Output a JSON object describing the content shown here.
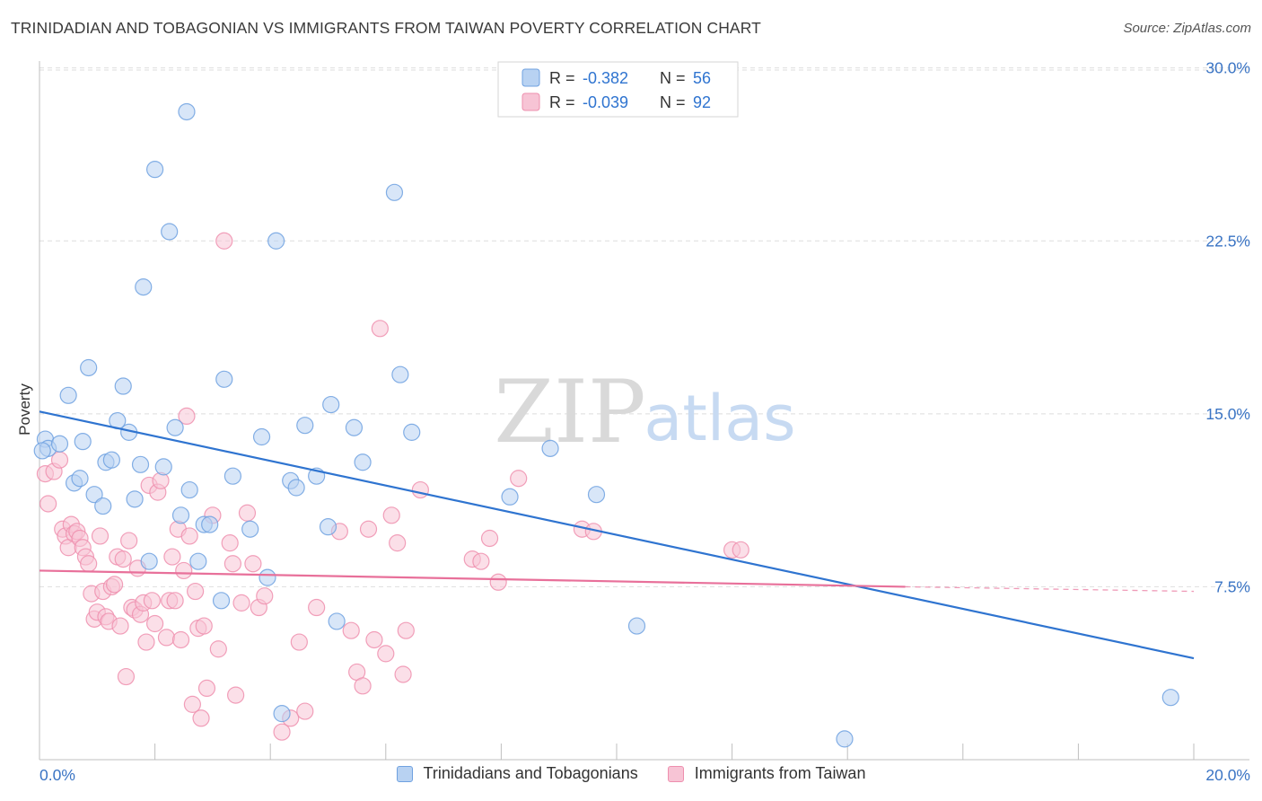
{
  "header": {
    "title": "TRINIDADIAN AND TOBAGONIAN VS IMMIGRANTS FROM TAIWAN POVERTY CORRELATION CHART",
    "source": "Source: ZipAtlas.com"
  },
  "watermark": {
    "zip": "ZIP",
    "atlas": "atlas"
  },
  "colors": {
    "blue": "#6fa1e0",
    "blue_fill": "#b8d2f2",
    "blue_line": "#2f74d0",
    "pink": "#ee8fae",
    "pink_fill": "#f7c4d5",
    "pink_line": "#e8709a",
    "tick": "#3a74c4"
  },
  "stats_legend": [
    {
      "r_label": "R = ",
      "r_value": "-0.382",
      "n_label": "N = ",
      "n_value": "56"
    },
    {
      "r_label": "R = ",
      "r_value": "-0.039",
      "n_label": "N = ",
      "n_value": "92"
    }
  ],
  "bottom_legend": [
    {
      "label": "Trinidadians and Tobagonians"
    },
    {
      "label": "Immigrants from Taiwan"
    }
  ],
  "chart_data": {
    "type": "scatter",
    "title": "TRINIDADIAN AND TOBAGONIAN VS IMMIGRANTS FROM TAIWAN POVERTY CORRELATION CHART",
    "xlabel": "",
    "ylabel": "Poverty",
    "xlim": [
      0,
      20
    ],
    "ylim": [
      0,
      31
    ],
    "x_tick_labels": [
      "0.0%",
      "20.0%"
    ],
    "y_ticks": [
      7.5,
      15.0,
      22.5,
      30.0
    ],
    "y_tick_labels": [
      "7.5%",
      "15.0%",
      "22.5%",
      "30.0%"
    ],
    "grid": true,
    "legend_position": "top-center",
    "series": [
      {
        "name": "Trinidadians and Tobagonians",
        "r": -0.382,
        "n": 56,
        "trend": {
          "x": [
            0,
            20
          ],
          "y": [
            15.1,
            4.4
          ]
        },
        "points": [
          [
            0.1,
            13.9
          ],
          [
            0.15,
            13.5
          ],
          [
            0.35,
            13.7
          ],
          [
            0.5,
            15.8
          ],
          [
            0.6,
            12.0
          ],
          [
            0.7,
            12.2
          ],
          [
            0.75,
            13.8
          ],
          [
            0.85,
            17.0
          ],
          [
            0.95,
            11.5
          ],
          [
            1.1,
            11.0
          ],
          [
            1.15,
            12.9
          ],
          [
            1.25,
            13.0
          ],
          [
            1.35,
            14.7
          ],
          [
            1.45,
            16.2
          ],
          [
            1.55,
            14.2
          ],
          [
            1.65,
            11.3
          ],
          [
            1.75,
            12.8
          ],
          [
            1.8,
            20.5
          ],
          [
            1.9,
            8.6
          ],
          [
            2.0,
            25.6
          ],
          [
            2.15,
            12.7
          ],
          [
            2.25,
            22.9
          ],
          [
            2.35,
            14.4
          ],
          [
            2.45,
            10.6
          ],
          [
            2.55,
            28.1
          ],
          [
            2.6,
            11.7
          ],
          [
            2.75,
            8.6
          ],
          [
            2.85,
            10.2
          ],
          [
            2.95,
            10.2
          ],
          [
            3.15,
            6.9
          ],
          [
            3.2,
            16.5
          ],
          [
            3.35,
            12.3
          ],
          [
            3.65,
            10.0
          ],
          [
            3.85,
            14.0
          ],
          [
            3.95,
            7.9
          ],
          [
            4.1,
            22.5
          ],
          [
            4.2,
            2.0
          ],
          [
            4.35,
            12.1
          ],
          [
            4.45,
            11.8
          ],
          [
            4.6,
            14.5
          ],
          [
            4.8,
            12.3
          ],
          [
            5.0,
            10.1
          ],
          [
            5.05,
            15.4
          ],
          [
            5.15,
            6.0
          ],
          [
            5.45,
            14.4
          ],
          [
            5.6,
            12.9
          ],
          [
            6.15,
            24.6
          ],
          [
            6.25,
            16.7
          ],
          [
            6.45,
            14.2
          ],
          [
            8.15,
            11.4
          ],
          [
            8.85,
            13.5
          ],
          [
            9.65,
            11.5
          ],
          [
            10.35,
            5.8
          ],
          [
            13.95,
            0.9
          ],
          [
            19.6,
            2.7
          ],
          [
            0.05,
            13.4
          ]
        ]
      },
      {
        "name": "Immigrants from Taiwan",
        "r": -0.039,
        "n": 92,
        "trend": {
          "x": [
            0,
            15
          ],
          "y": [
            8.2,
            7.5
          ]
        },
        "trend_dashed": {
          "x": [
            15,
            20
          ],
          "y": [
            7.5,
            7.3
          ]
        },
        "points": [
          [
            0.1,
            12.4
          ],
          [
            0.15,
            11.1
          ],
          [
            0.25,
            12.5
          ],
          [
            0.35,
            13.0
          ],
          [
            0.4,
            10.0
          ],
          [
            0.45,
            9.7
          ],
          [
            0.5,
            9.2
          ],
          [
            0.55,
            10.2
          ],
          [
            0.6,
            9.8
          ],
          [
            0.65,
            9.9
          ],
          [
            0.7,
            9.6
          ],
          [
            0.75,
            9.2
          ],
          [
            0.8,
            8.8
          ],
          [
            0.85,
            8.5
          ],
          [
            0.9,
            7.2
          ],
          [
            0.95,
            6.1
          ],
          [
            1.0,
            6.4
          ],
          [
            1.05,
            9.7
          ],
          [
            1.1,
            7.3
          ],
          [
            1.15,
            6.2
          ],
          [
            1.2,
            6.0
          ],
          [
            1.25,
            7.5
          ],
          [
            1.3,
            7.6
          ],
          [
            1.35,
            8.8
          ],
          [
            1.4,
            5.8
          ],
          [
            1.45,
            8.7
          ],
          [
            1.5,
            3.6
          ],
          [
            1.55,
            9.5
          ],
          [
            1.6,
            6.6
          ],
          [
            1.65,
            6.5
          ],
          [
            1.7,
            8.3
          ],
          [
            1.75,
            6.3
          ],
          [
            1.8,
            6.8
          ],
          [
            1.85,
            5.1
          ],
          [
            1.9,
            11.9
          ],
          [
            1.95,
            6.9
          ],
          [
            2.0,
            5.9
          ],
          [
            2.05,
            11.6
          ],
          [
            2.1,
            12.1
          ],
          [
            2.2,
            5.3
          ],
          [
            2.25,
            6.9
          ],
          [
            2.3,
            8.8
          ],
          [
            2.35,
            6.9
          ],
          [
            2.4,
            10.0
          ],
          [
            2.45,
            5.2
          ],
          [
            2.5,
            8.2
          ],
          [
            2.55,
            14.9
          ],
          [
            2.6,
            9.7
          ],
          [
            2.65,
            2.4
          ],
          [
            2.7,
            7.3
          ],
          [
            2.75,
            5.7
          ],
          [
            2.8,
            1.8
          ],
          [
            2.85,
            5.8
          ],
          [
            2.9,
            3.1
          ],
          [
            3.0,
            10.6
          ],
          [
            3.1,
            4.8
          ],
          [
            3.2,
            22.5
          ],
          [
            3.3,
            9.4
          ],
          [
            3.35,
            8.5
          ],
          [
            3.4,
            2.8
          ],
          [
            3.5,
            6.8
          ],
          [
            3.6,
            10.7
          ],
          [
            3.7,
            8.5
          ],
          [
            3.8,
            6.6
          ],
          [
            3.9,
            7.1
          ],
          [
            4.2,
            1.2
          ],
          [
            4.35,
            1.8
          ],
          [
            4.5,
            5.1
          ],
          [
            4.6,
            2.1
          ],
          [
            4.8,
            6.6
          ],
          [
            5.2,
            9.9
          ],
          [
            5.4,
            5.6
          ],
          [
            5.5,
            3.8
          ],
          [
            5.6,
            3.2
          ],
          [
            5.7,
            10.0
          ],
          [
            5.8,
            5.2
          ],
          [
            5.9,
            18.7
          ],
          [
            6.0,
            4.6
          ],
          [
            6.1,
            10.6
          ],
          [
            6.2,
            9.4
          ],
          [
            6.3,
            3.7
          ],
          [
            6.6,
            11.7
          ],
          [
            7.5,
            8.7
          ],
          [
            7.65,
            8.6
          ],
          [
            7.8,
            9.6
          ],
          [
            7.95,
            7.7
          ],
          [
            8.3,
            12.2
          ],
          [
            9.4,
            10.0
          ],
          [
            9.6,
            9.9
          ],
          [
            12.0,
            9.1
          ],
          [
            12.15,
            9.1
          ],
          [
            6.35,
            5.6
          ]
        ]
      }
    ]
  }
}
